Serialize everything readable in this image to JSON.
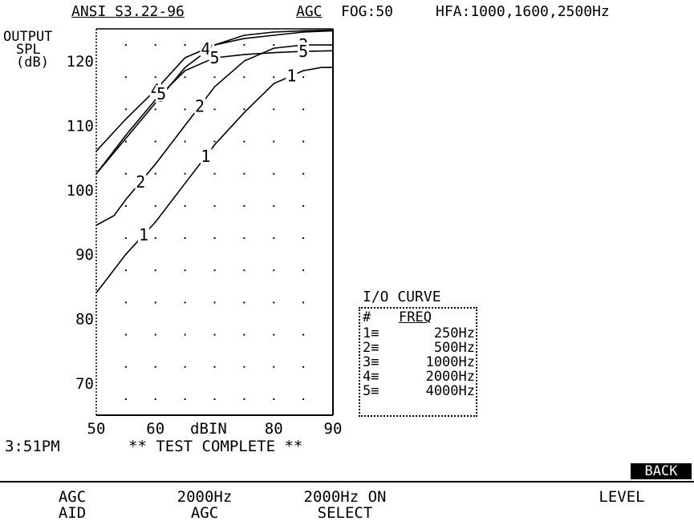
{
  "header": {
    "standard": "ANSI S3.22-96",
    "mode": "AGC",
    "fog": "FOG:50",
    "hfa": "HFA:1000,1600,2500Hz"
  },
  "y_title": [
    "OUTPUT",
    "SPL",
    "(dB)"
  ],
  "status": {
    "time": "3:51PM",
    "message": "** TEST COMPLETE **"
  },
  "back_label": "BACK",
  "softkeys": [
    {
      "line1": "AGC",
      "line2": "AID"
    },
    {
      "line1": "2000Hz",
      "line2": "AGC"
    },
    {
      "line1": "2000Hz ON",
      "line2": "SELECT"
    },
    {
      "line1": "",
      "line2": "LEVEL"
    }
  ],
  "legend": {
    "title": "I/O CURVE",
    "header": [
      "#",
      "FREQ"
    ],
    "rows": [
      {
        "num": "1",
        "freq": "250Hz"
      },
      {
        "num": "2",
        "freq": "500Hz"
      },
      {
        "num": "3",
        "freq": "1000Hz"
      },
      {
        "num": "4",
        "freq": "2000Hz"
      },
      {
        "num": "5",
        "freq": "4000Hz"
      }
    ]
  },
  "chart_data": {
    "type": "line",
    "xlabel": "dBIN",
    "ylabel": "OUTPUT SPL (dB)",
    "xlim": [
      50,
      90
    ],
    "ylim": [
      65,
      125
    ],
    "x_ticks": [
      50,
      60,
      80,
      90
    ],
    "y_ticks": [
      70,
      80,
      90,
      100,
      110,
      120
    ],
    "grid": "dotted",
    "series": [
      {
        "name": "1",
        "x": [
          50,
          55,
          60,
          65,
          70,
          75,
          80,
          85,
          88,
          90
        ],
        "y": [
          84,
          90,
          95,
          101,
          107,
          112,
          116.5,
          118.5,
          119,
          119
        ]
      },
      {
        "name": "2",
        "x": [
          50,
          53,
          55,
          60,
          65,
          70,
          75,
          80,
          85,
          90
        ],
        "y": [
          94.5,
          96,
          98.5,
          104,
          110,
          116,
          120,
          122,
          122.5,
          122.5
        ]
      },
      {
        "name": "3",
        "x": [
          50,
          55,
          60,
          65,
          70,
          75,
          80,
          85,
          90
        ],
        "y": [
          102.5,
          108,
          113.5,
          119,
          122.5,
          124,
          124.5,
          124.7,
          124.8
        ]
      },
      {
        "name": "4",
        "x": [
          50,
          55,
          60,
          65,
          70,
          75,
          80,
          85,
          90
        ],
        "y": [
          106,
          111,
          115.5,
          120.5,
          122.5,
          123.5,
          124,
          124.5,
          124.7
        ]
      },
      {
        "name": "5",
        "x": [
          50,
          55,
          60,
          65,
          70,
          75,
          80,
          85,
          90
        ],
        "y": [
          102.5,
          108.5,
          114,
          118.5,
          120.5,
          121,
          121.3,
          121.5,
          121.6
        ]
      }
    ]
  }
}
